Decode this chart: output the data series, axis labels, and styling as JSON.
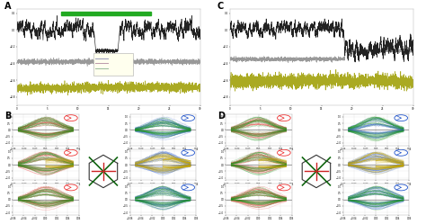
{
  "panel_labels": [
    "A",
    "B",
    "C",
    "D"
  ],
  "background_color": "#ffffff",
  "panel_bg": "#ffffff",
  "green_bar_color": "#22aa22",
  "line_dark": "#222222",
  "line_gray": "#999999",
  "line_yellow": "#aaaa22",
  "hexagon_color": "#333333",
  "cross_green": "#116611",
  "cross_red": "#cc2222",
  "subplot_line_red": "#ee3333",
  "subplot_line_green": "#229922",
  "subplot_line_blue": "#2255cc",
  "subplot_line_yellow": "#ccaa00",
  "subplot_line_dark_green": "#115511",
  "legend_bg": "#ffffee",
  "panel_gray_bg": "#eeeeee"
}
